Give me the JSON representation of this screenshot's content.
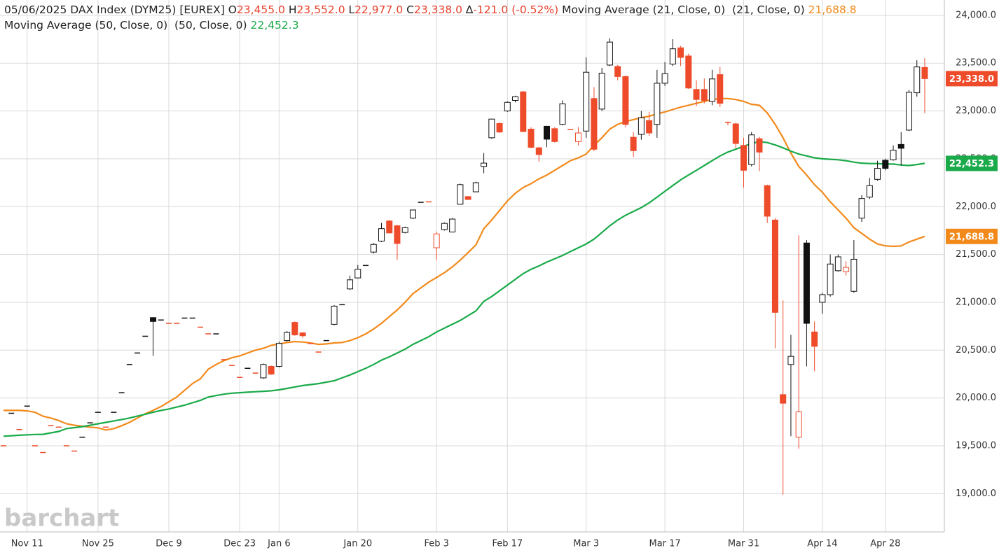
{
  "header": {
    "date": "05/06/2025",
    "symbol": "DAX Index (DYM25) [EUREX]",
    "ohlc": [
      {
        "label": "O",
        "value": "23,455.0"
      },
      {
        "label": "H",
        "value": "23,552.0"
      },
      {
        "label": "L",
        "value": "22,977.0"
      },
      {
        "label": "C",
        "value": "23,338.0"
      }
    ],
    "change_symbol": "∆",
    "change": "-121.0",
    "change_pct": "(-0.52%)"
  },
  "watermark": "barchart",
  "chart_data": {
    "type": "candlestick",
    "categories": [
      null,
      null,
      null,
      "Nov 11",
      null,
      null,
      null,
      null,
      null,
      null,
      null,
      null,
      "Nov 25",
      null,
      null,
      null,
      null,
      null,
      null,
      null,
      null,
      "Dec 9",
      null,
      null,
      null,
      null,
      null,
      null,
      null,
      null,
      "Dec 23",
      null,
      null,
      null,
      null,
      "Jan 6",
      null,
      null,
      null,
      null,
      null,
      null,
      null,
      null,
      null,
      "Jan 20",
      null,
      null,
      null,
      null,
      null,
      null,
      null,
      null,
      null,
      "Feb 3",
      null,
      null,
      null,
      null,
      null,
      null,
      null,
      null,
      "Feb 17",
      null,
      null,
      null,
      null,
      null,
      null,
      null,
      null,
      null,
      "Mar 3",
      null,
      null,
      null,
      null,
      null,
      null,
      null,
      null,
      null,
      "Mar 17",
      null,
      null,
      null,
      null,
      null,
      null,
      null,
      null,
      null,
      "Mar 31",
      null,
      null,
      null,
      null,
      null,
      null,
      null,
      null,
      null,
      "Apr 14",
      null,
      null,
      null,
      null,
      null,
      null,
      null,
      "Apr 28",
      null,
      null,
      null,
      null,
      null
    ],
    "open": [
      19500,
      19840,
      19670,
      19915,
      19500,
      19430,
      19710,
      19695,
      19500,
      19445,
      19590,
      19740,
      19850,
      19695,
      19850,
      20055,
      20350,
      20470,
      20645,
      20840,
      20815,
      20780,
      20780,
      20835,
      20835,
      20740,
      20670,
      20670,
      20400,
      20340,
      20215,
      20310,
      20260,
      20210,
      20330,
      20330,
      20600,
      20790,
      20680,
      20570,
      20480,
      20600,
      20770,
      20975,
      21140,
      21255,
      21385,
      21525,
      21640,
      21850,
      21800,
      21730,
      21880,
      22045,
      22050,
      21570,
      21760,
      21735,
      22025,
      22105,
      22155,
      22420,
      22720,
      22870,
      23000,
      23110,
      23200,
      22810,
      22615,
      22840,
      22815,
      22860,
      22805,
      22680,
      22790,
      23130,
      23020,
      23480,
      23465,
      23360,
      22725,
      22755,
      22900,
      22860,
      23290,
      23490,
      23660,
      23575,
      23225,
      23225,
      23100,
      23380,
      22880,
      22865,
      22640,
      22440,
      22710,
      22220,
      21860,
      20035,
      20350,
      19590,
      21620,
      20690,
      21000,
      21080,
      21330,
      21320,
      21115,
      21880,
      22100,
      22285,
      22485,
      22490,
      22650,
      22800,
      23190,
      23455
    ],
    "high": [
      19500,
      19840,
      19670,
      19915,
      19500,
      19430,
      19710,
      19695,
      19500,
      19445,
      19590,
      19740,
      19850,
      19695,
      19850,
      20055,
      20350,
      20470,
      20645,
      20845,
      20815,
      20780,
      20780,
      20835,
      20835,
      20740,
      20670,
      20670,
      20400,
      20340,
      20215,
      20310,
      20260,
      20360,
      20340,
      20590,
      20700,
      20800,
      20690,
      20570,
      20480,
      20600,
      20970,
      20975,
      21280,
      21390,
      21385,
      21620,
      21830,
      21860,
      21810,
      21790,
      21970,
      22045,
      22050,
      21740,
      21835,
      21880,
      22240,
      22110,
      22260,
      22560,
      22920,
      22880,
      23100,
      23160,
      23210,
      22830,
      22625,
      22845,
      22830,
      23110,
      22805,
      22830,
      23560,
      23250,
      23450,
      23760,
      23480,
      23370,
      22780,
      23000,
      22990,
      23430,
      23510,
      23750,
      23680,
      23600,
      23320,
      23340,
      23430,
      23460,
      22890,
      22880,
      22720,
      22780,
      22730,
      22230,
      21880,
      21020,
      20660,
      21700,
      21650,
      20800,
      21100,
      21500,
      21500,
      21430,
      21650,
      22120,
      22300,
      22480,
      22500,
      22640,
      22780,
      23220,
      23530,
      23552
    ],
    "low": [
      19500,
      19840,
      19670,
      19915,
      19500,
      19430,
      19710,
      19695,
      19500,
      19445,
      19590,
      19740,
      19850,
      19695,
      19850,
      20055,
      20350,
      20470,
      20645,
      20440,
      20815,
      20780,
      20780,
      20835,
      20835,
      20740,
      20670,
      20670,
      20400,
      20340,
      20215,
      20310,
      20260,
      20200,
      20240,
      20320,
      20590,
      20650,
      20630,
      20570,
      20480,
      20600,
      20760,
      20975,
      21130,
      21250,
      21385,
      21510,
      21630,
      21720,
      21445,
      21720,
      21870,
      22045,
      22050,
      21440,
      21750,
      21730,
      22020,
      22070,
      22150,
      22350,
      22710,
      22770,
      22990,
      23090,
      22780,
      22610,
      22470,
      22620,
      22670,
      22850,
      22805,
      22640,
      22720,
      22580,
      23000,
      23470,
      23320,
      22830,
      22520,
      22700,
      22740,
      22720,
      23260,
      23470,
      23470,
      23230,
      23050,
      23080,
      23060,
      23040,
      22850,
      22610,
      22200,
      22420,
      22370,
      21830,
      20520,
      18990,
      19600,
      19470,
      20330,
      20280,
      20880,
      21060,
      21320,
      21280,
      21100,
      21840,
      22080,
      22270,
      22380,
      22480,
      22430,
      22790,
      23150,
      22977
    ],
    "close": [
      19500,
      19840,
      19670,
      19915,
      19500,
      19430,
      19710,
      19695,
      19500,
      19445,
      19590,
      19740,
      19850,
      19695,
      19850,
      20055,
      20350,
      20470,
      20645,
      20800,
      20815,
      20780,
      20780,
      20835,
      20835,
      20740,
      20670,
      20670,
      20400,
      20340,
      20215,
      20310,
      20260,
      20350,
      20250,
      20570,
      20685,
      20660,
      20650,
      20570,
      20480,
      20600,
      20960,
      20975,
      21235,
      21345,
      21385,
      21605,
      21770,
      21725,
      21615,
      21780,
      21965,
      22045,
      22050,
      21715,
      21825,
      21870,
      22230,
      22075,
      22250,
      22455,
      22915,
      22780,
      23090,
      23150,
      22785,
      22620,
      22545,
      22705,
      22680,
      23075,
      22805,
      22770,
      23405,
      22600,
      23395,
      23720,
      23360,
      22860,
      22585,
      22930,
      22770,
      23290,
      23390,
      23650,
      23560,
      23240,
      23120,
      23110,
      23335,
      23080,
      22880,
      22660,
      22380,
      22750,
      22570,
      21900,
      20895,
      19945,
      20435,
      19855,
      20780,
      20540,
      21080,
      21400,
      21475,
      21365,
      21450,
      22085,
      22220,
      22400,
      22400,
      22590,
      22610,
      23195,
      23460,
      23338
    ],
    "last_label": "23,338.0",
    "last_color": "#ee4b2b",
    "colors": [
      "#ee4b2b",
      "#111111",
      "#ee4b2b",
      "#111111",
      "#ee4b2b",
      "#ee4b2b",
      "#ee4b2b",
      "#ee4b2b",
      "#ee4b2b",
      "#ee4b2b",
      "#111111",
      "#111111",
      "#111111",
      "#ee4b2b",
      "#111111",
      "#111111",
      "#111111",
      "#111111",
      "#111111",
      "#111111",
      "#111111",
      "#ee4b2b",
      "#ee4b2b",
      "#111111",
      "#111111",
      "#ee4b2b",
      "#ee4b2b",
      "#111111",
      "#ee4b2b",
      "#ee4b2b",
      "#ee4b2b",
      "#111111",
      "#ee4b2b",
      "#111111",
      "#ee4b2b",
      "#111111",
      "#111111",
      "#ee4b2b",
      "#ee4b2b",
      "#ee4b2b",
      "#ee4b2b",
      "#111111",
      "#111111",
      "#111111",
      "#111111",
      "#111111",
      "#111111",
      "#111111",
      "#111111",
      "#ee4b2b",
      "#ee4b2b",
      "#111111",
      "#111111",
      "#111111",
      "#ee4b2b",
      "#ee4b2b",
      "#111111",
      "#111111",
      "#111111",
      "#ee4b2b",
      "#111111",
      "#111111",
      "#111111",
      "#ee4b2b",
      "#111111",
      "#111111",
      "#ee4b2b",
      "#ee4b2b",
      "#ee4b2b",
      "#111111",
      "#ee4b2b",
      "#111111",
      "#ee4b2b",
      "#ee4b2b",
      "#111111",
      "#ee4b2b",
      "#111111",
      "#111111",
      "#ee4b2b",
      "#ee4b2b",
      "#ee4b2b",
      "#111111",
      "#ee4b2b",
      "#111111",
      "#111111",
      "#111111",
      "#ee4b2b",
      "#ee4b2b",
      "#ee4b2b",
      "#ee4b2b",
      "#111111",
      "#ee4b2b",
      "#ee4b2b",
      "#ee4b2b",
      "#ee4b2b",
      "#111111",
      "#ee4b2b",
      "#ee4b2b",
      "#ee4b2b",
      "#ee4b2b",
      "#111111",
      "#ee4b2b",
      "#111111",
      "#ee4b2b",
      "#111111",
      "#111111",
      "#111111",
      "#ee4b2b",
      "#111111",
      "#111111",
      "#111111",
      "#111111",
      "#111111",
      "#111111",
      "#111111",
      "#111111",
      "#111111",
      "#ee4b2b"
    ],
    "series": [
      {
        "name": "Moving Average (21, Close, 0)",
        "params": "(21, Close, 0)",
        "color": "#f28a1b",
        "last_label": "21,688.8",
        "values": [
          19870,
          19870,
          19870,
          19865,
          19850,
          19810,
          19790,
          19765,
          19730,
          19715,
          19705,
          19695,
          19688,
          19665,
          19680,
          19710,
          19745,
          19790,
          19835,
          19870,
          19910,
          19960,
          20010,
          20080,
          20150,
          20200,
          20300,
          20350,
          20390,
          20420,
          20440,
          20470,
          20500,
          20520,
          20550,
          20565,
          20580,
          20590,
          20585,
          20575,
          20560,
          20565,
          20575,
          20580,
          20600,
          20630,
          20670,
          20720,
          20780,
          20850,
          20920,
          21000,
          21090,
          21150,
          21210,
          21260,
          21310,
          21370,
          21440,
          21520,
          21600,
          21770,
          21860,
          21960,
          22060,
          22140,
          22200,
          22240,
          22290,
          22330,
          22380,
          22430,
          22480,
          22510,
          22550,
          22640,
          22720,
          22810,
          22860,
          22890,
          22910,
          22930,
          22945,
          22970,
          22990,
          23015,
          23040,
          23060,
          23080,
          23100,
          23120,
          23130,
          23130,
          23120,
          23100,
          23070,
          23060,
          22980,
          22860,
          22720,
          22560,
          22420,
          22330,
          22230,
          22150,
          22050,
          21965,
          21880,
          21780,
          21720,
          21660,
          21610,
          21590,
          21585,
          21590,
          21630,
          21660,
          21688.8
        ]
      },
      {
        "name": "Moving Average (50, Close, 0)",
        "params": "(50, Close, 0)",
        "color": "#1aaa4a",
        "last_label": "22,452.3",
        "values": [
          19600,
          19605,
          19610,
          19615,
          19618,
          19620,
          19635,
          19650,
          19680,
          19690,
          19700,
          19715,
          19730,
          19745,
          19760,
          19775,
          19790,
          19810,
          19830,
          19850,
          19870,
          19885,
          19905,
          19925,
          19950,
          19975,
          20010,
          20025,
          20040,
          20050,
          20055,
          20060,
          20065,
          20070,
          20075,
          20085,
          20100,
          20115,
          20130,
          20140,
          20150,
          20165,
          20180,
          20210,
          20240,
          20275,
          20310,
          20350,
          20395,
          20430,
          20470,
          20510,
          20560,
          20600,
          20640,
          20690,
          20730,
          20770,
          20810,
          20860,
          20910,
          21010,
          21060,
          21120,
          21180,
          21240,
          21300,
          21345,
          21380,
          21420,
          21455,
          21490,
          21530,
          21570,
          21610,
          21660,
          21730,
          21800,
          21860,
          21910,
          21950,
          21990,
          22040,
          22100,
          22160,
          22220,
          22280,
          22330,
          22380,
          22430,
          22480,
          22530,
          22570,
          22600,
          22630,
          22660,
          22680,
          22670,
          22645,
          22615,
          22580,
          22550,
          22530,
          22510,
          22500,
          22495,
          22490,
          22480,
          22465,
          22455,
          22450,
          22450,
          22445,
          22445,
          22435,
          22430,
          22440,
          22452.3
        ]
      }
    ],
    "ylim": [
      18600,
      24160
    ],
    "yticks": [
      {
        "value": 19000,
        "label": "19,000.0"
      },
      {
        "value": 19500,
        "label": "19,500.0"
      },
      {
        "value": 20000,
        "label": "20,000.0"
      },
      {
        "value": 20500,
        "label": "20,500.0"
      },
      {
        "value": 21000,
        "label": "21,000.0"
      },
      {
        "value": 21500,
        "label": "21,500.0"
      },
      {
        "value": 22000,
        "label": "22,000.0"
      },
      {
        "value": 22500,
        "label": "22,500.0"
      },
      {
        "value": 23000,
        "label": "23,000.0"
      },
      {
        "value": 23500,
        "label": "23,500.0"
      },
      {
        "value": 24000,
        "label": "24,000.0"
      }
    ],
    "grid": true
  }
}
